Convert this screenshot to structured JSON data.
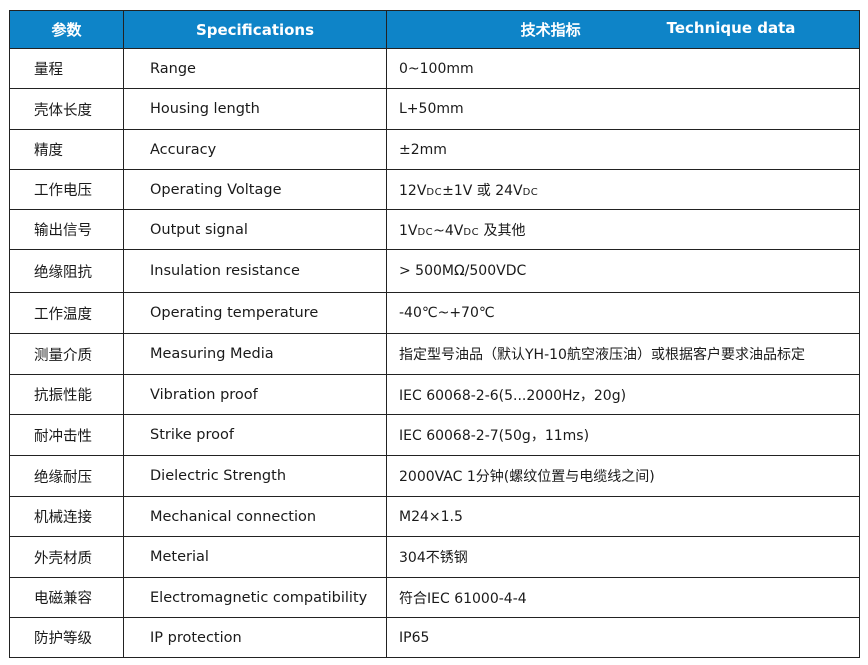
{
  "header": {
    "col1": "参数",
    "col2": "Specifications",
    "col3_cn": "技术指标",
    "col3_en": "Technique data",
    "background_color": "#0e84c8"
  },
  "rows": [
    {
      "cn": "量程",
      "en": "Range",
      "value": "0~100mm"
    },
    {
      "cn": "壳体长度",
      "en": "Housing length",
      "value": "L+50mm"
    },
    {
      "cn": "精度",
      "en": "Accuracy",
      "value": "±2mm"
    },
    {
      "cn": "工作电压",
      "en": "Operating Voltage",
      "value": "12V{DC}±1V 或 24V{DC}"
    },
    {
      "cn": "输出信号",
      "en": "Output  signal",
      "value": "1V{DC}~4V{DC} 及其他"
    },
    {
      "cn": "绝缘阻抗",
      "en": "Insulation resistance",
      "value": "> 500MΩ/500VDC"
    },
    {
      "cn": "工作温度",
      "en": "Operating  temperature",
      "value": "-40℃~+70℃"
    },
    {
      "cn": "测量介质",
      "en": "Measuring Media",
      "value": "指定型号油品（默认YH-10航空液压油）或根据客户要求油品标定"
    },
    {
      "cn": "抗振性能",
      "en": "Vibration  proof",
      "value": "IEC 60068-2-6(5...2000Hz，20g)"
    },
    {
      "cn": "耐冲击性",
      "en": "Strike  proof",
      "value": "IEC 60068-2-7(50g，11ms)"
    },
    {
      "cn": "绝缘耐压",
      "en": "Dielectric Strength",
      "value": " 2000VAC  1分钟(螺纹位置与电缆线之间)"
    },
    {
      "cn": "机械连接",
      "en": "Mechanical connection",
      "value": "M24×1.5"
    },
    {
      "cn": "外壳材质",
      "en": "Meterial",
      "value": "304不锈钢"
    },
    {
      "cn": "电磁兼容",
      "en": "Electromagnetic compatibility",
      "value": "符合IEC 61000-4-4"
    },
    {
      "cn": "防护等级",
      "en": "IP protection",
      "value": "IP65"
    }
  ]
}
